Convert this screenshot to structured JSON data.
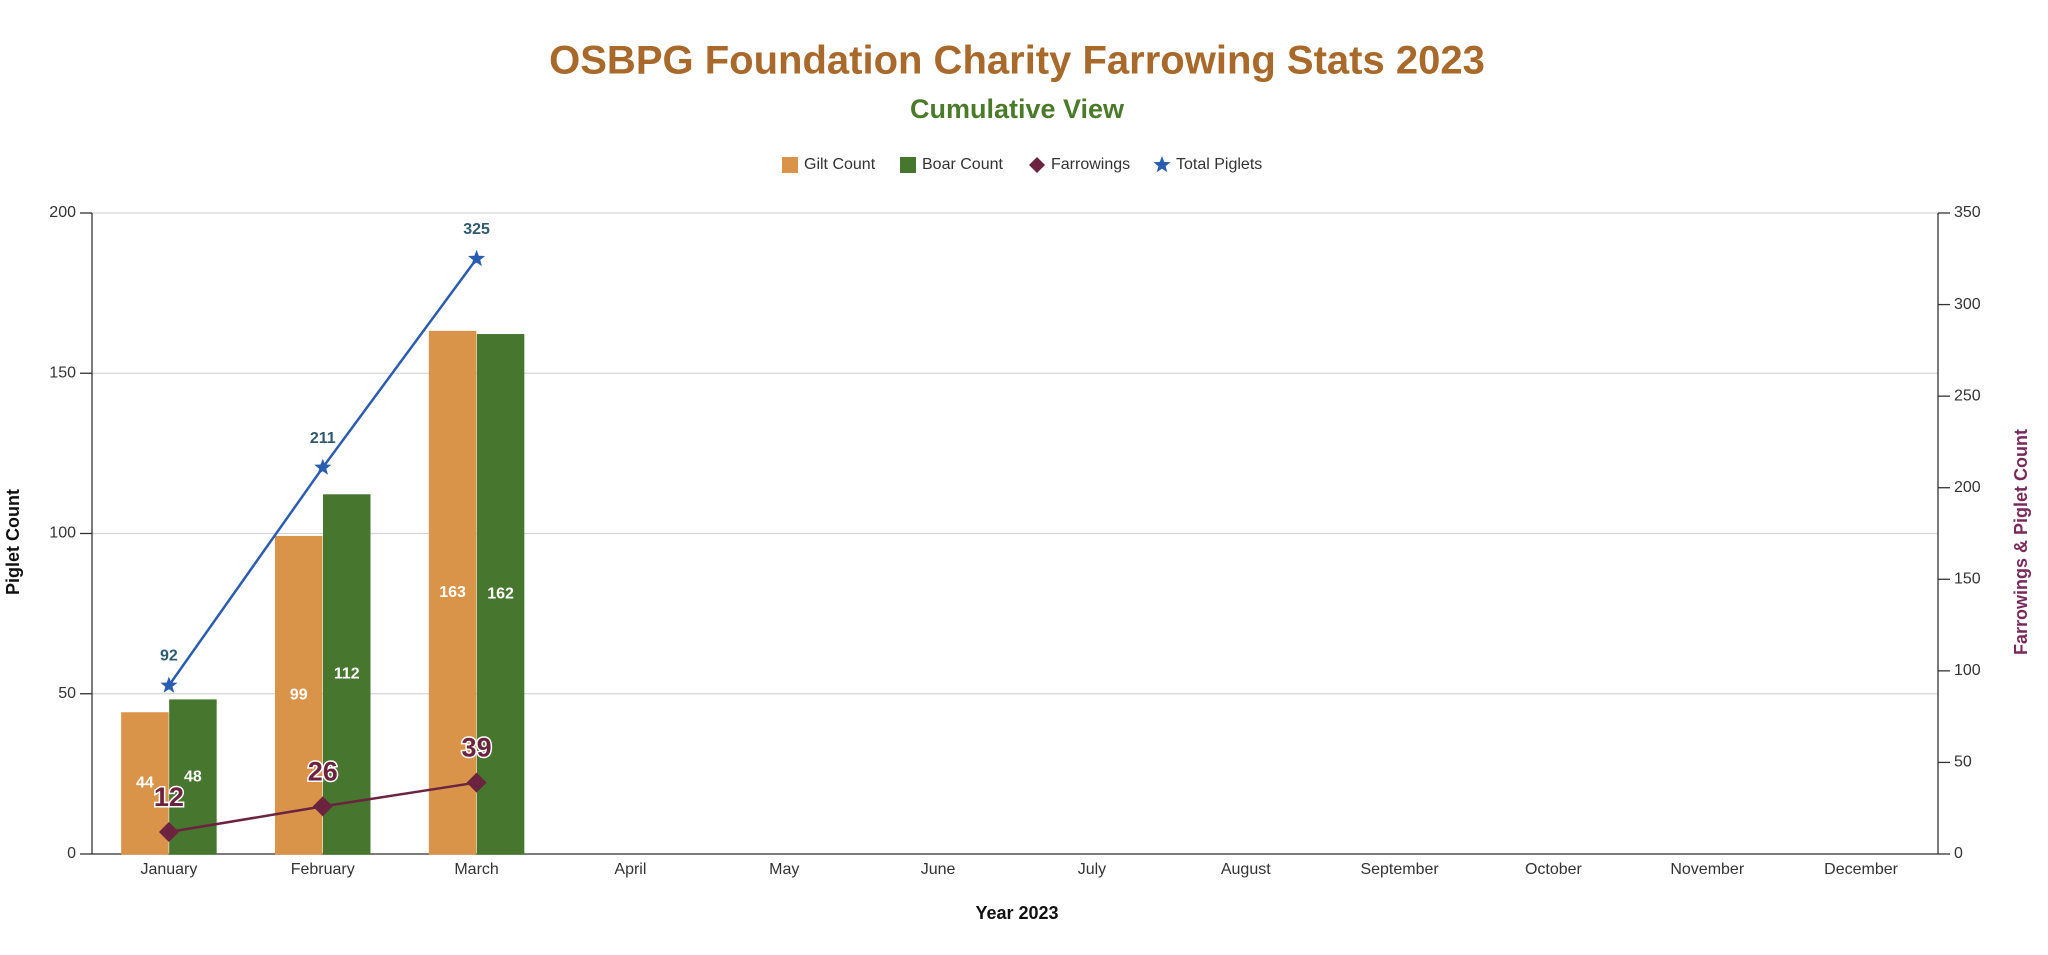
{
  "chart_data": {
    "type": "bar",
    "title": "OSBPG Foundation Charity Farrowing Stats 2023",
    "subtitle": "Cumulative View",
    "x_label": "Year 2023",
    "y_label": "Piglet Count",
    "y2_label": "Farrowings & Piglet Count",
    "categories": [
      "January",
      "February",
      "March",
      "April",
      "May",
      "June",
      "July",
      "August",
      "September",
      "October",
      "November",
      "December"
    ],
    "series": [
      {
        "name": "Gilt Count",
        "type": "bar",
        "color": "#d9944a",
        "values": [
          44,
          99,
          163,
          null,
          null,
          null,
          null,
          null,
          null,
          null,
          null,
          null
        ]
      },
      {
        "name": "Boar Count",
        "type": "bar",
        "color": "#47762e",
        "values": [
          48,
          112,
          162,
          null,
          null,
          null,
          null,
          null,
          null,
          null,
          null,
          null
        ]
      },
      {
        "name": "Farrowings",
        "type": "line",
        "marker": "diamond",
        "axis": "y2",
        "color": "#6b2340",
        "values": [
          12,
          26,
          39,
          null,
          null,
          null,
          null,
          null,
          null,
          null,
          null,
          null
        ]
      },
      {
        "name": "Total Piglets",
        "type": "line",
        "marker": "star",
        "axis": "y2",
        "color": "#2a5db0",
        "values": [
          92,
          211,
          325,
          null,
          null,
          null,
          null,
          null,
          null,
          null,
          null,
          null
        ]
      }
    ],
    "ylim": [
      0,
      200
    ],
    "yticks": [
      0,
      50,
      100,
      150,
      200
    ],
    "y2lim": [
      0,
      350
    ],
    "y2ticks": [
      0,
      50,
      100,
      150,
      200,
      250,
      300,
      350
    ],
    "grid": true,
    "legend": "top"
  }
}
